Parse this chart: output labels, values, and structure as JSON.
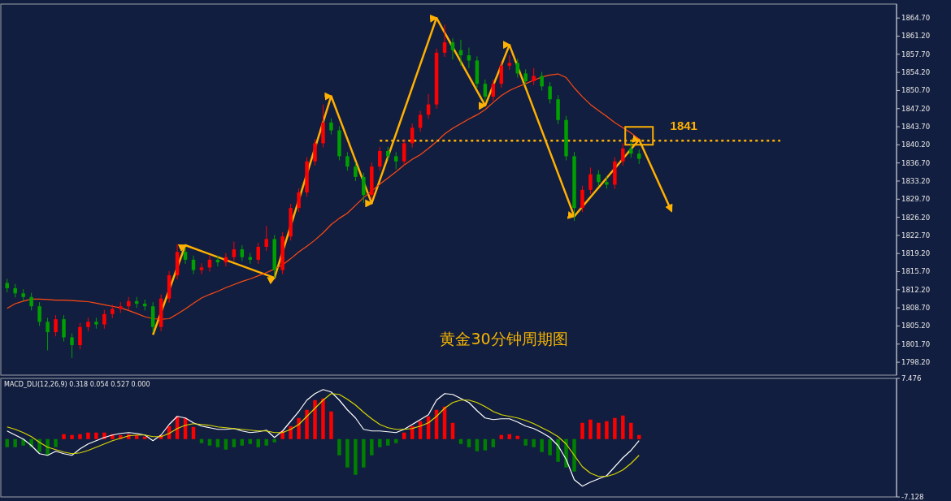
{
  "chart_data": [
    {
      "type": "candlestick",
      "title": "黄金30分钟周期图",
      "categories": [
        null,
        null,
        null,
        null,
        null,
        null,
        null,
        null,
        null,
        null,
        null,
        null,
        null,
        null,
        null,
        null,
        null,
        null,
        null,
        null,
        null,
        null,
        null,
        null,
        null,
        null,
        null,
        null,
        null,
        null,
        null,
        null,
        null,
        null,
        null,
        null,
        null,
        null,
        null,
        null,
        null,
        null,
        null,
        null,
        null,
        null,
        null,
        null,
        null,
        null,
        null,
        null,
        null,
        null,
        null,
        null,
        null,
        null,
        null,
        null,
        null,
        null,
        null,
        null,
        null,
        null,
        null,
        null,
        null,
        null,
        null,
        null,
        null,
        null,
        null,
        null,
        null,
        null,
        null,
        null,
        null,
        null,
        null,
        null,
        null,
        null,
        null,
        null,
        null,
        null,
        null,
        null,
        null,
        null,
        null,
        null,
        null,
        null,
        null,
        null,
        null,
        null,
        null,
        null,
        null,
        null,
        null,
        null,
        null,
        null
      ],
      "ohlc": [
        [
          1813.5,
          1814.3,
          1811.7,
          1812.5
        ],
        [
          1812.5,
          1813.3,
          1810.7,
          1811.5
        ],
        [
          1811.5,
          1812.3,
          1810.0,
          1810.8
        ],
        [
          1810.8,
          1811.6,
          1808.2,
          1809.0
        ],
        [
          1809.0,
          1809.8,
          1805.2,
          1806.0
        ],
        [
          1806.0,
          1806.8,
          1800.5,
          1804.0
        ],
        [
          1804.0,
          1807.3,
          1803.2,
          1806.5
        ],
        [
          1806.5,
          1807.3,
          1802.2,
          1803.0
        ],
        [
          1803.0,
          1803.8,
          1799.0,
          1801.5
        ],
        [
          1801.5,
          1805.8,
          1800.7,
          1805.0
        ],
        [
          1805.0,
          1806.8,
          1804.2,
          1806.0
        ],
        [
          1806.0,
          1806.8,
          1804.7,
          1805.5
        ],
        [
          1805.5,
          1808.3,
          1804.7,
          1807.5
        ],
        [
          1807.5,
          1809.3,
          1806.7,
          1808.5
        ],
        [
          1808.5,
          1809.8,
          1807.7,
          1809.0
        ],
        [
          1809.0,
          1810.8,
          1808.2,
          1810.0
        ],
        [
          1810.0,
          1810.8,
          1808.7,
          1809.5
        ],
        [
          1809.5,
          1810.3,
          1808.2,
          1809.0
        ],
        [
          1809.0,
          1809.8,
          1804.0,
          1805.0
        ],
        [
          1805.0,
          1811.3,
          1804.2,
          1810.5
        ],
        [
          1810.5,
          1815.8,
          1809.7,
          1815.0
        ],
        [
          1815.0,
          1821.0,
          1814.2,
          1819.5
        ],
        [
          1819.5,
          1820.3,
          1817.2,
          1818.0
        ],
        [
          1818.0,
          1818.8,
          1815.2,
          1816.0
        ],
        [
          1816.0,
          1817.3,
          1815.2,
          1816.5
        ],
        [
          1816.5,
          1818.8,
          1815.7,
          1818.0
        ],
        [
          1818.0,
          1818.8,
          1816.7,
          1817.5
        ],
        [
          1817.5,
          1819.3,
          1816.7,
          1818.5
        ],
        [
          1818.5,
          1821.5,
          1817.7,
          1820.0
        ],
        [
          1820.0,
          1820.8,
          1817.7,
          1818.5
        ],
        [
          1818.5,
          1819.3,
          1817.2,
          1818.0
        ],
        [
          1818.0,
          1821.3,
          1817.2,
          1820.5
        ],
        [
          1820.5,
          1824.5,
          1819.7,
          1822.0
        ],
        [
          1822.0,
          1822.8,
          1814.5,
          1816.0
        ],
        [
          1816.0,
          1823.3,
          1815.2,
          1822.5
        ],
        [
          1822.5,
          1828.8,
          1821.7,
          1828.0
        ],
        [
          1828.0,
          1831.8,
          1827.2,
          1831.0
        ],
        [
          1831.0,
          1837.8,
          1830.2,
          1837.0
        ],
        [
          1837.0,
          1841.3,
          1836.2,
          1840.5
        ],
        [
          1840.5,
          1848.0,
          1839.7,
          1844.5
        ],
        [
          1844.5,
          1845.3,
          1842.2,
          1843.0
        ],
        [
          1843.0,
          1843.8,
          1837.2,
          1838.0
        ],
        [
          1838.0,
          1838.8,
          1835.2,
          1836.0
        ],
        [
          1836.0,
          1836.8,
          1833.2,
          1834.0
        ],
        [
          1834.0,
          1834.8,
          1829.0,
          1830.5
        ],
        [
          1830.5,
          1836.8,
          1829.7,
          1836.0
        ],
        [
          1836.0,
          1839.8,
          1835.2,
          1839.0
        ],
        [
          1839.0,
          1839.8,
          1837.2,
          1838.0
        ],
        [
          1838.0,
          1838.8,
          1835.5,
          1837.0
        ],
        [
          1837.0,
          1841.3,
          1836.2,
          1840.5
        ],
        [
          1840.5,
          1844.3,
          1839.7,
          1843.5
        ],
        [
          1843.5,
          1846.8,
          1842.7,
          1846.0
        ],
        [
          1846.0,
          1850.0,
          1845.2,
          1848.0
        ],
        [
          1848.0,
          1858.8,
          1847.2,
          1858.0
        ],
        [
          1858.0,
          1863.4,
          1857.2,
          1860.0
        ],
        [
          1860.0,
          1860.8,
          1856.7,
          1858.5
        ],
        [
          1858.5,
          1860.5,
          1855.5,
          1857.5
        ],
        [
          1857.5,
          1859.0,
          1855.0,
          1856.5
        ],
        [
          1856.5,
          1857.3,
          1851.2,
          1852.0
        ],
        [
          1852.0,
          1852.8,
          1848.7,
          1849.5
        ],
        [
          1849.5,
          1852.8,
          1848.7,
          1852.0
        ],
        [
          1852.0,
          1856.3,
          1851.2,
          1855.5
        ],
        [
          1855.5,
          1857.5,
          1854.7,
          1856.0
        ],
        [
          1856.0,
          1856.8,
          1853.2,
          1854.0
        ],
        [
          1854.0,
          1854.8,
          1851.7,
          1852.5
        ],
        [
          1852.5,
          1855.0,
          1851.7,
          1853.5
        ],
        [
          1853.5,
          1854.3,
          1850.7,
          1851.5
        ],
        [
          1851.5,
          1852.3,
          1848.2,
          1849.0
        ],
        [
          1849.0,
          1849.8,
          1844.2,
          1845.0
        ],
        [
          1845.0,
          1845.8,
          1837.2,
          1838.0
        ],
        [
          1838.0,
          1838.8,
          1825.5,
          1828.0
        ],
        [
          1828.0,
          1832.3,
          1827.2,
          1831.5
        ],
        [
          1831.5,
          1835.8,
          1830.7,
          1834.5
        ],
        [
          1834.5,
          1835.3,
          1832.2,
          1833.0
        ],
        [
          1833.0,
          1834.0,
          1831.7,
          1832.5
        ],
        [
          1832.5,
          1837.8,
          1831.7,
          1837.0
        ],
        [
          1837.0,
          1840.5,
          1836.2,
          1839.5
        ],
        [
          1839.5,
          1841.0,
          1837.7,
          1838.5
        ],
        [
          1838.5,
          1839.3,
          1836.5,
          1837.5
        ],
        null,
        null,
        null,
        null,
        null,
        null,
        null,
        null,
        null,
        null,
        null,
        null,
        null,
        null,
        null,
        null,
        null,
        null,
        null,
        null,
        null,
        null,
        null,
        null,
        null,
        null,
        null,
        null,
        null,
        null,
        null
      ],
      "series": [
        {
          "type": "line",
          "color": "#ff4a12",
          "values": [
            1808.6,
            1809.5,
            1810.0,
            1810.4,
            1810.4,
            1810.3,
            1810.2,
            1810.2,
            1810.1,
            1810.0,
            1809.9,
            1809.6,
            1809.3,
            1809.0,
            1808.7,
            1808.2,
            1807.6,
            1807.0,
            1806.6,
            1806.5,
            1806.6,
            1807.5,
            1808.5,
            1809.6,
            1810.6,
            1811.3,
            1811.9,
            1812.6,
            1813.2,
            1813.8,
            1814.3,
            1814.9,
            1815.5,
            1816.2,
            1817.0,
            1818.2,
            1819.5,
            1820.6,
            1821.8,
            1823.2,
            1824.8,
            1826.0,
            1827.0,
            1828.5,
            1830.0,
            1831.3,
            1832.6,
            1833.8,
            1835.0,
            1836.3,
            1837.4,
            1838.3,
            1839.5,
            1840.8,
            1842.3,
            1843.4,
            1844.3,
            1845.2,
            1846.0,
            1847.0,
            1848.4,
            1849.7,
            1850.7,
            1851.4,
            1852.0,
            1852.7,
            1853.3,
            1853.7,
            1853.9,
            1853.2,
            1851.2,
            1849.5,
            1848.0,
            1846.8,
            1845.7,
            1844.5,
            1843.5,
            1842.5,
            1841.3,
            null,
            null,
            null,
            null,
            null,
            null,
            null,
            null,
            null,
            null,
            null,
            null,
            null,
            null,
            null,
            null,
            null,
            null,
            null,
            null,
            null,
            null,
            null,
            null,
            null,
            null,
            null,
            null,
            null,
            null,
            null
          ]
        },
        {
          "type": "line",
          "color": "#ffb000",
          "values": [
            null,
            null,
            null,
            null,
            null,
            null,
            null,
            null,
            null,
            null,
            null,
            null,
            null,
            null,
            null,
            null,
            null,
            null,
            1803.5,
            null,
            null,
            null,
            1820.8,
            null,
            null,
            null,
            null,
            null,
            null,
            null,
            null,
            null,
            null,
            1814.5,
            null,
            null,
            null,
            null,
            null,
            null,
            1849.6,
            null,
            null,
            null,
            null,
            1828.9,
            null,
            null,
            null,
            null,
            null,
            null,
            null,
            1864.7,
            null,
            null,
            null,
            null,
            null,
            1847.8,
            null,
            null,
            1859.5,
            null,
            null,
            null,
            null,
            null,
            null,
            null,
            1826.4,
            null,
            null,
            null,
            null,
            null,
            null,
            null,
            1841.2,
            null,
            null,
            null,
            1827.4,
            null,
            null,
            null,
            null,
            null,
            null,
            null,
            null,
            null,
            null,
            null,
            null,
            null,
            null,
            null,
            null,
            null,
            null,
            null,
            null,
            null,
            null,
            null,
            null,
            null,
            null,
            null
          ]
        }
      ],
      "ylim": [
        1795.7,
        1867.4
      ],
      "yticks": [
        {
          "value": 1864.7,
          "label": "1864.70"
        },
        {
          "value": 1861.2,
          "label": "1861.20"
        },
        {
          "value": 1857.7,
          "label": "1857.70"
        },
        {
          "value": 1854.2,
          "label": "1854.20"
        },
        {
          "value": 1850.7,
          "label": "1850.70"
        },
        {
          "value": 1847.2,
          "label": "1847.20"
        },
        {
          "value": 1843.7,
          "label": "1843.70"
        },
        {
          "value": 1840.2,
          "label": "1840.20"
        },
        {
          "value": 1836.7,
          "label": "1836.70"
        },
        {
          "value": 1833.2,
          "label": "1833.20"
        },
        {
          "value": 1829.7,
          "label": "1829.70"
        },
        {
          "value": 1826.2,
          "label": "1826.20"
        },
        {
          "value": 1822.7,
          "label": "1822.70"
        },
        {
          "value": 1819.2,
          "label": "1819.20"
        },
        {
          "value": 1815.7,
          "label": "1815.70"
        },
        {
          "value": 1812.2,
          "label": "1812.20"
        },
        {
          "value": 1808.7,
          "label": "1808.70"
        },
        {
          "value": 1805.2,
          "label": "1805.20"
        },
        {
          "value": 1801.7,
          "label": "1801.70"
        },
        {
          "value": 1798.2,
          "label": "1798.20"
        }
      ],
      "ref_lines": [
        {
          "axis": "y",
          "value": 1841,
          "label": "1841",
          "color": "#ffb000",
          "line_style": "dotted"
        }
      ]
    },
    {
      "type": "bar",
      "title": "MACD_DLI(12,26,9) 0.318 0.054 0.527 0.000",
      "categories": [
        null,
        null,
        null,
        null,
        null,
        null,
        null,
        null,
        null,
        null,
        null,
        null,
        null,
        null,
        null,
        null,
        null,
        null,
        null,
        null,
        null,
        null,
        null,
        null,
        null,
        null,
        null,
        null,
        null,
        null,
        null,
        null,
        null,
        null,
        null,
        null,
        null,
        null,
        null,
        null,
        null,
        null,
        null,
        null,
        null,
        null,
        null,
        null,
        null,
        null,
        null,
        null,
        null,
        null,
        null,
        null,
        null,
        null,
        null,
        null,
        null,
        null,
        null,
        null,
        null,
        null,
        null,
        null,
        null,
        null,
        null,
        null,
        null,
        null,
        null,
        null,
        null,
        null,
        null,
        null,
        null,
        null,
        null,
        null,
        null,
        null,
        null,
        null,
        null,
        null,
        null,
        null,
        null,
        null,
        null,
        null,
        null,
        null,
        null,
        null,
        null,
        null,
        null,
        null,
        null,
        null,
        null,
        null,
        null,
        null
      ],
      "series": [
        {
          "type": "bar",
          "values": [
            -1.0,
            -1.0,
            -0.8,
            -1.0,
            -1.6,
            -2.0,
            -1.0,
            0.6,
            0.5,
            0.6,
            0.8,
            0.8,
            0.8,
            0.6,
            0.5,
            0.6,
            0.5,
            0.3,
            null,
            0.5,
            1.6,
            2.8,
            2.6,
            1.5,
            -0.5,
            -0.8,
            -1.0,
            -1.3,
            -1.0,
            -0.8,
            -0.6,
            -1.0,
            -0.8,
            -0.4,
            1.0,
            1.6,
            2.6,
            3.6,
            4.8,
            5.0,
            3.4,
            -2.0,
            -3.5,
            -4.4,
            -3.5,
            -2.0,
            -1.0,
            -0.8,
            -0.5,
            0.8,
            1.6,
            2.2,
            2.8,
            3.6,
            4.0,
            2.0,
            -0.6,
            -1.0,
            -1.5,
            -1.4,
            -1.0,
            0.5,
            0.6,
            0.4,
            -0.8,
            -1.0,
            -1.6,
            -2.0,
            -2.8,
            -3.5,
            -4.0,
            2.0,
            2.4,
            2.0,
            2.2,
            2.6,
            2.9,
            2.0,
            0.5,
            null,
            null,
            null,
            null,
            null,
            null,
            null,
            null,
            null,
            null,
            null,
            null,
            null,
            null,
            null,
            null,
            null,
            null,
            null,
            null,
            null,
            null,
            null,
            null,
            null,
            null,
            null,
            null,
            null,
            null,
            null
          ],
          "colors": [
            "#008000",
            "#008000",
            "#008000",
            "#008000",
            "#008000",
            "#008000",
            "#008000",
            "#ff0000",
            "#ff0000",
            "#ff0000",
            "#ff0000",
            "#ff0000",
            "#ff0000",
            "#ff0000",
            "#ff0000",
            "#ff0000",
            "#ff0000",
            "#ff0000",
            null,
            "#ff0000",
            "#ff0000",
            "#ff0000",
            "#ff0000",
            "#ff0000",
            "#008000",
            "#008000",
            "#008000",
            "#008000",
            "#008000",
            "#008000",
            "#008000",
            "#008000",
            "#008000",
            "#008000",
            "#ff0000",
            "#ff0000",
            "#ff0000",
            "#ff0000",
            "#ff0000",
            "#ff0000",
            "#ff0000",
            "#008000",
            "#008000",
            "#008000",
            "#008000",
            "#008000",
            "#008000",
            "#008000",
            "#008000",
            "#ff0000",
            "#ff0000",
            "#ff0000",
            "#ff0000",
            "#ff0000",
            "#ff0000",
            "#ff0000",
            "#008000",
            "#008000",
            "#008000",
            "#008000",
            "#008000",
            "#ff0000",
            "#ff0000",
            "#ff0000",
            "#008000",
            "#008000",
            "#008000",
            "#008000",
            "#008000",
            "#008000",
            "#008000",
            "#ff0000",
            "#ff0000",
            "#ff0000",
            "#ff0000",
            "#ff0000",
            "#ff0000",
            "#ff0000",
            "#ff0000",
            null,
            null,
            null,
            null,
            null,
            null,
            null,
            null,
            null,
            null,
            null,
            null,
            null,
            null,
            null,
            null,
            null,
            null,
            null,
            null,
            null,
            null,
            null,
            null,
            null,
            null,
            null,
            null,
            null,
            null,
            null
          ]
        },
        {
          "type": "line",
          "color": "#ffffff",
          "values": [
            1.0,
            0.5,
            0,
            -0.8,
            -1.8,
            -2.0,
            -1.5,
            -1.8,
            -2.0,
            -1.2,
            -0.6,
            -0.2,
            0.2,
            0.5,
            0.7,
            0.8,
            0.7,
            0.5,
            -0.2,
            0.5,
            1.8,
            2.8,
            2.6,
            2.0,
            1.6,
            1.4,
            1.2,
            1.2,
            1.3,
            1.0,
            0.8,
            0.9,
            1.1,
            0.2,
            1.0,
            2.2,
            3.4,
            4.8,
            5.6,
            6.1,
            5.8,
            4.8,
            3.6,
            2.6,
            1.2,
            1.0,
            1.0,
            0.9,
            0.8,
            1.2,
            1.8,
            2.4,
            3.0,
            4.8,
            5.6,
            5.5,
            5.0,
            4.5,
            3.5,
            2.6,
            2.4,
            2.5,
            2.5,
            2.1,
            1.6,
            1.3,
            0.8,
            0.2,
            -0.8,
            -2.5,
            -5.0,
            -5.8,
            -5.3,
            -4.9,
            -4.5,
            -3.4,
            -2.3,
            -1.4,
            -0.2,
            null,
            null,
            null,
            null,
            null,
            null,
            null,
            null,
            null,
            null,
            null,
            null,
            null,
            null,
            null,
            null,
            null,
            null,
            null,
            null,
            null,
            null,
            null,
            null,
            null,
            null,
            null,
            null,
            null,
            null,
            null
          ]
        },
        {
          "type": "line",
          "color": "#d8d800",
          "values": [
            1.5,
            1.2,
            0.8,
            0.3,
            -0.4,
            -1.0,
            -1.3,
            -1.6,
            -1.8,
            -1.7,
            -1.4,
            -1.0,
            -0.6,
            -0.2,
            0.1,
            0.4,
            0.5,
            0.5,
            0.3,
            0.3,
            0.7,
            1.3,
            1.7,
            1.9,
            1.8,
            1.7,
            1.5,
            1.4,
            1.3,
            1.2,
            1.1,
            1.0,
            1.0,
            0.8,
            0.8,
            1.2,
            1.8,
            2.8,
            3.8,
            4.8,
            5.6,
            5.5,
            4.9,
            4.2,
            3.3,
            2.5,
            1.8,
            1.4,
            1.2,
            1.2,
            1.3,
            1.6,
            2.0,
            2.8,
            3.8,
            4.5,
            4.8,
            4.8,
            4.5,
            4.0,
            3.4,
            3.0,
            2.8,
            2.6,
            2.3,
            1.9,
            1.4,
            0.9,
            0.3,
            -0.6,
            -2.0,
            -3.4,
            -4.2,
            -4.6,
            -4.6,
            -4.3,
            -3.8,
            -3.0,
            -2.0,
            null,
            null,
            null,
            null,
            null,
            null,
            null,
            null,
            null,
            null,
            null,
            null,
            null,
            null,
            null,
            null,
            null,
            null,
            null,
            null,
            null,
            null,
            null,
            null,
            null,
            null,
            null,
            null,
            null,
            null,
            null
          ]
        }
      ],
      "ylim": [
        -7.128,
        7.476
      ],
      "yticks": [
        7.476,
        -7.128
      ]
    }
  ]
}
